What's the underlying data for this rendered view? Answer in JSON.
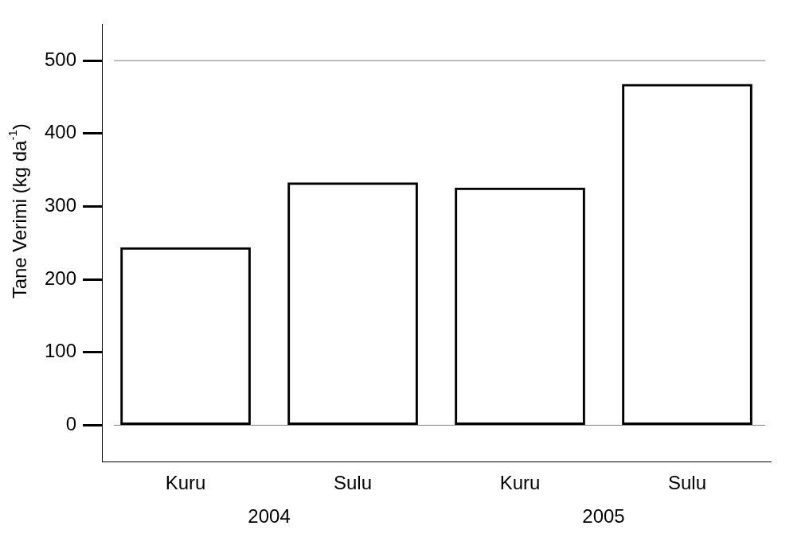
{
  "chart_data": {
    "type": "bar",
    "ylabel": "Tane Verimi (kg da$^{-1}$)",
    "categories": [
      "Kuru",
      "Sulu",
      "Kuru",
      "Sulu"
    ],
    "values": [
      244,
      333,
      326,
      468
    ],
    "color": "#000000",
    "ylim": [
      -50,
      550
    ],
    "yticks": [
      0,
      100,
      200,
      300,
      400,
      500
    ],
    "ref_lines": [
      {
        "axis": "y",
        "value": 0,
        "color": "#808080"
      },
      {
        "axis": "y",
        "value": 500,
        "color": "#808080"
      }
    ],
    "annotations": [
      "2004",
      "2005"
    ],
    "grid": false,
    "legend": false
  }
}
